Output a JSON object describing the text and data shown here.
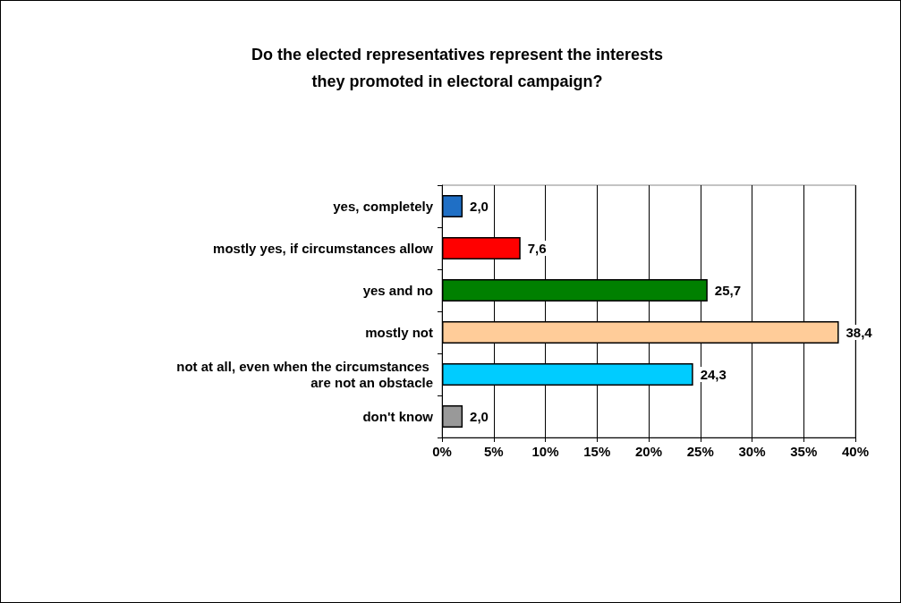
{
  "chart_data": {
    "type": "bar",
    "orientation": "horizontal",
    "title": "Do the elected representatives represent the interests\nthey promoted in electoral campaign?",
    "categories": [
      "yes, completely",
      "mostly yes, if circumstances allow",
      "yes and no",
      "mostly not",
      "not at all, even when the circumstances are not an obstacle",
      "don't know"
    ],
    "values": [
      2.0,
      7.6,
      25.7,
      38.4,
      24.3,
      2.0
    ],
    "value_labels": [
      "2,0",
      "7,6",
      "25,7",
      "38,4",
      "24,3",
      "2,0"
    ],
    "colors": [
      "#1f6fc5",
      "#ff0000",
      "#008000",
      "#ffcc99",
      "#00ccff",
      "#999999"
    ],
    "xlim": [
      0,
      40
    ],
    "xticks": [
      {
        "value": 0,
        "label": "0%"
      },
      {
        "value": 5,
        "label": "5%"
      },
      {
        "value": 10,
        "label": "10%"
      },
      {
        "value": 15,
        "label": "15%"
      },
      {
        "value": 20,
        "label": "20%"
      },
      {
        "value": 25,
        "label": "25%"
      },
      {
        "value": 30,
        "label": "30%"
      },
      {
        "value": 35,
        "label": "35%"
      },
      {
        "value": 40,
        "label": "40%"
      }
    ],
    "grid": "x"
  }
}
